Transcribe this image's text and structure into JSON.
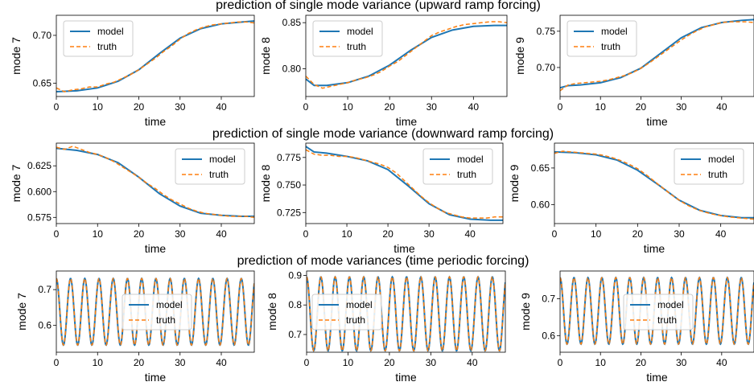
{
  "figure": {
    "row_titles": [
      "prediction of single mode variance (upward ramp forcing)",
      "prediction of single mode variance (downward ramp forcing)",
      "prediction of mode variances (time periodic forcing)"
    ]
  },
  "colors": {
    "model": "#1f77b4",
    "truth": "#ff7f0e"
  },
  "chart_data": [
    {
      "type": "line",
      "row": 0,
      "ylabel": "mode 7",
      "xlabel": "time",
      "xlim": [
        0,
        48
      ],
      "ylim": [
        0.636,
        0.721
      ],
      "xticks": [
        0,
        10,
        20,
        30,
        40
      ],
      "yticks": [
        "0.65",
        "0.70"
      ],
      "legend": "top-left",
      "series": [
        {
          "name": "model",
          "style": "solid",
          "x": [
            0,
            5,
            10,
            15,
            20,
            25,
            30,
            35,
            40,
            45,
            48
          ],
          "y": [
            0.641,
            0.642,
            0.645,
            0.652,
            0.664,
            0.681,
            0.697,
            0.707,
            0.712,
            0.714,
            0.715
          ]
        },
        {
          "name": "truth",
          "style": "dashed",
          "x": [
            0,
            2,
            4,
            6,
            8,
            10,
            12,
            14,
            16,
            18,
            20,
            22,
            24,
            26,
            28,
            30,
            32,
            34,
            36,
            38,
            40,
            42,
            44,
            46,
            48
          ],
          "y": [
            0.645,
            0.641,
            0.643,
            0.644,
            0.646,
            0.646,
            0.649,
            0.651,
            0.655,
            0.659,
            0.664,
            0.67,
            0.676,
            0.683,
            0.689,
            0.696,
            0.702,
            0.706,
            0.709,
            0.711,
            0.712,
            0.713,
            0.714,
            0.714,
            0.713
          ]
        }
      ]
    },
    {
      "type": "line",
      "row": 0,
      "ylabel": "mode 8",
      "xlabel": "time",
      "xlim": [
        0,
        48
      ],
      "ylim": [
        0.77,
        0.858
      ],
      "xticks": [
        0,
        10,
        20,
        30,
        40
      ],
      "yticks": [
        "0.80",
        "0.85"
      ],
      "legend": "top-left",
      "series": [
        {
          "name": "model",
          "style": "solid",
          "x": [
            0,
            2,
            5,
            10,
            15,
            20,
            25,
            30,
            35,
            40,
            45,
            48
          ],
          "y": [
            0.789,
            0.782,
            0.782,
            0.785,
            0.792,
            0.804,
            0.82,
            0.834,
            0.842,
            0.846,
            0.847,
            0.847
          ]
        },
        {
          "name": "truth",
          "style": "dashed",
          "x": [
            0,
            2,
            4,
            6,
            8,
            10,
            12,
            14,
            16,
            18,
            20,
            22,
            24,
            26,
            28,
            30,
            32,
            34,
            36,
            38,
            40,
            42,
            44,
            46,
            48
          ],
          "y": [
            0.792,
            0.783,
            0.779,
            0.781,
            0.783,
            0.785,
            0.788,
            0.79,
            0.793,
            0.797,
            0.803,
            0.808,
            0.815,
            0.822,
            0.829,
            0.836,
            0.84,
            0.843,
            0.846,
            0.848,
            0.849,
            0.85,
            0.851,
            0.851,
            0.85
          ]
        }
      ]
    },
    {
      "type": "line",
      "row": 0,
      "ylabel": "mode 9",
      "xlabel": "time",
      "xlim": [
        0,
        48
      ],
      "ylim": [
        0.66,
        0.772
      ],
      "xticks": [
        0,
        10,
        20,
        30,
        40
      ],
      "yticks": [
        "0.70",
        "0.75"
      ],
      "legend": "top-left",
      "series": [
        {
          "name": "model",
          "style": "solid",
          "x": [
            0,
            2,
            5,
            10,
            15,
            20,
            25,
            30,
            35,
            40,
            45,
            48
          ],
          "y": [
            0.672,
            0.675,
            0.676,
            0.679,
            0.686,
            0.699,
            0.72,
            0.741,
            0.755,
            0.762,
            0.765,
            0.766
          ]
        },
        {
          "name": "truth",
          "style": "dashed",
          "x": [
            0,
            2,
            4,
            6,
            8,
            10,
            12,
            14,
            16,
            18,
            20,
            22,
            24,
            26,
            28,
            30,
            32,
            34,
            36,
            38,
            40,
            42,
            44,
            46,
            48
          ],
          "y": [
            0.668,
            0.676,
            0.678,
            0.679,
            0.68,
            0.681,
            0.683,
            0.686,
            0.689,
            0.693,
            0.699,
            0.706,
            0.714,
            0.722,
            0.73,
            0.738,
            0.745,
            0.751,
            0.756,
            0.759,
            0.762,
            0.763,
            0.763,
            0.763,
            0.762
          ]
        }
      ]
    },
    {
      "type": "line",
      "row": 1,
      "ylabel": "mode 7",
      "xlabel": "time",
      "xlim": [
        0,
        48
      ],
      "ylim": [
        0.569,
        0.647
      ],
      "xticks": [
        0,
        10,
        20,
        30,
        40
      ],
      "yticks": [
        "0.575",
        "0.600",
        "0.625"
      ],
      "legend": "top-right",
      "series": [
        {
          "name": "model",
          "style": "solid",
          "x": [
            0,
            5,
            10,
            15,
            20,
            25,
            30,
            35,
            40,
            45,
            48
          ],
          "y": [
            0.642,
            0.64,
            0.636,
            0.628,
            0.614,
            0.598,
            0.586,
            0.579,
            0.577,
            0.576,
            0.576
          ]
        },
        {
          "name": "truth",
          "style": "dashed",
          "x": [
            0,
            2,
            4,
            6,
            8,
            10,
            12,
            14,
            16,
            18,
            20,
            22,
            24,
            26,
            28,
            30,
            32,
            34,
            36,
            38,
            40,
            42,
            44,
            46,
            48
          ],
          "y": [
            0.643,
            0.641,
            0.644,
            0.641,
            0.638,
            0.636,
            0.633,
            0.629,
            0.624,
            0.619,
            0.614,
            0.608,
            0.603,
            0.597,
            0.592,
            0.588,
            0.584,
            0.581,
            0.579,
            0.578,
            0.577,
            0.576,
            0.576,
            0.576,
            0.575
          ]
        }
      ]
    },
    {
      "type": "line",
      "row": 1,
      "ylabel": "mode 8",
      "xlabel": "time",
      "xlim": [
        0,
        48
      ],
      "ylim": [
        0.715,
        0.788
      ],
      "xticks": [
        0,
        10,
        20,
        30,
        40
      ],
      "yticks": [
        "0.725",
        "0.750",
        "0.775"
      ],
      "legend": "top-right",
      "series": [
        {
          "name": "model",
          "style": "solid",
          "x": [
            0,
            2,
            5,
            10,
            15,
            20,
            25,
            30,
            35,
            40,
            45,
            48
          ],
          "y": [
            0.785,
            0.78,
            0.779,
            0.776,
            0.772,
            0.764,
            0.749,
            0.733,
            0.723,
            0.719,
            0.718,
            0.718
          ]
        },
        {
          "name": "truth",
          "style": "dashed",
          "x": [
            0,
            2,
            4,
            6,
            8,
            10,
            12,
            14,
            16,
            18,
            20,
            22,
            24,
            26,
            28,
            30,
            32,
            34,
            36,
            38,
            40,
            42,
            44,
            46,
            48
          ],
          "y": [
            0.782,
            0.778,
            0.777,
            0.777,
            0.776,
            0.776,
            0.775,
            0.773,
            0.771,
            0.769,
            0.766,
            0.761,
            0.754,
            0.747,
            0.74,
            0.734,
            0.729,
            0.725,
            0.723,
            0.721,
            0.72,
            0.72,
            0.72,
            0.721,
            0.721
          ]
        }
      ]
    },
    {
      "type": "line",
      "row": 1,
      "ylabel": "mode 9",
      "xlabel": "time",
      "xlim": [
        0,
        48
      ],
      "ylim": [
        0.574,
        0.684
      ],
      "xticks": [
        0,
        10,
        20,
        30,
        40
      ],
      "yticks": [
        "0.60",
        "0.65"
      ],
      "legend": "top-right",
      "series": [
        {
          "name": "model",
          "style": "solid",
          "x": [
            0,
            5,
            10,
            15,
            20,
            25,
            30,
            35,
            40,
            45,
            48
          ],
          "y": [
            0.672,
            0.671,
            0.668,
            0.661,
            0.647,
            0.627,
            0.606,
            0.592,
            0.585,
            0.582,
            0.582
          ]
        },
        {
          "name": "truth",
          "style": "dashed",
          "x": [
            0,
            2,
            4,
            6,
            8,
            10,
            12,
            14,
            16,
            18,
            20,
            22,
            24,
            26,
            28,
            30,
            32,
            34,
            36,
            38,
            40,
            42,
            44,
            46,
            48
          ],
          "y": [
            0.67,
            0.673,
            0.672,
            0.671,
            0.67,
            0.669,
            0.667,
            0.664,
            0.66,
            0.655,
            0.649,
            0.641,
            0.632,
            0.623,
            0.614,
            0.606,
            0.599,
            0.594,
            0.59,
            0.587,
            0.585,
            0.583,
            0.582,
            0.581,
            0.58
          ]
        }
      ]
    },
    {
      "type": "line",
      "row": 2,
      "ylabel": "mode 7",
      "xlabel": "time",
      "xlim": [
        0,
        48
      ],
      "ylim": [
        0.525,
        0.752
      ],
      "xticks": [
        0,
        10,
        20,
        30,
        40
      ],
      "yticks": [
        "0.6",
        "0.7"
      ],
      "legend": "center",
      "periodic": {
        "center": 0.638,
        "amplitude": 0.093,
        "period": 3.45
      },
      "series": [
        {
          "name": "model",
          "style": "solid"
        },
        {
          "name": "truth",
          "style": "dashed"
        }
      ]
    },
    {
      "type": "line",
      "row": 2,
      "ylabel": "mode 8",
      "xlabel": "time",
      "xlim": [
        0,
        48
      ],
      "ylim": [
        0.64,
        0.915
      ],
      "xticks": [
        0,
        10,
        20,
        30,
        40
      ],
      "yticks": [
        "0.7",
        "0.8",
        "0.9"
      ],
      "legend": "center-left",
      "periodic": {
        "center": 0.77,
        "amplitude": 0.125,
        "period": 3.45
      },
      "series": [
        {
          "name": "model",
          "style": "solid"
        },
        {
          "name": "truth",
          "style": "dashed"
        }
      ]
    },
    {
      "type": "line",
      "row": 2,
      "ylabel": "mode 9",
      "xlabel": "time",
      "xlim": [
        0,
        48
      ],
      "ylim": [
        0.555,
        0.775
      ],
      "xticks": [
        0,
        10,
        20,
        30,
        40
      ],
      "yticks": [
        "0.6",
        "0.7"
      ],
      "legend": "center-right",
      "periodic": {
        "center": 0.667,
        "amplitude": 0.09,
        "period": 3.45
      },
      "series": [
        {
          "name": "model",
          "style": "solid"
        },
        {
          "name": "truth",
          "style": "dashed"
        }
      ]
    }
  ]
}
